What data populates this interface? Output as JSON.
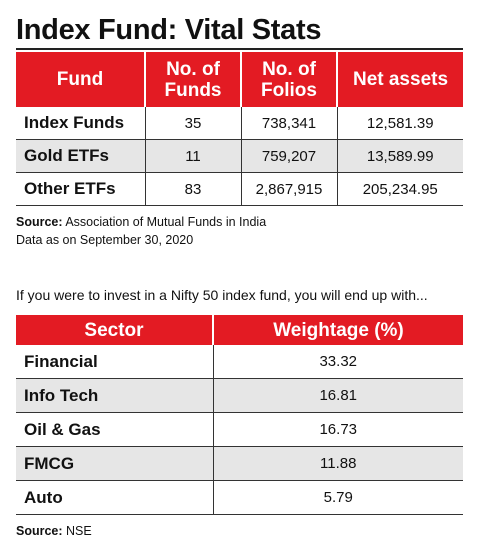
{
  "title": "Index Fund: Vital Stats",
  "fund_table": {
    "headers": [
      "Fund",
      "No. of Funds",
      "No. of Folios",
      "Net assets"
    ],
    "rows": [
      {
        "fund": "Index Funds",
        "funds": "35",
        "folios": "738,341",
        "net_assets": "12,581.39"
      },
      {
        "fund": "Gold ETFs",
        "funds": "11",
        "folios": "759,207",
        "net_assets": "13,589.99"
      },
      {
        "fund": "Other ETFs",
        "funds": "83",
        "folios": "2,867,915",
        "net_assets": "205,234.95"
      }
    ]
  },
  "fund_source": {
    "label": "Source:",
    "text": "Association of Mutual Funds in India",
    "date_note": "Data as on September 30, 2020"
  },
  "intro": "If you were to invest in a Nifty 50 index fund, you will end up with...",
  "sector_table": {
    "headers": [
      "Sector",
      "Weightage (%)"
    ],
    "rows": [
      {
        "sector": "Financial",
        "weight": "33.32"
      },
      {
        "sector": "Info Tech",
        "weight": "16.81"
      },
      {
        "sector": "Oil & Gas",
        "weight": "16.73"
      },
      {
        "sector": "FMCG",
        "weight": "11.88"
      },
      {
        "sector": "Auto",
        "weight": "5.79"
      }
    ]
  },
  "sector_source": {
    "label": "Source:",
    "text": "NSE"
  },
  "colors": {
    "header_red": "#e31b23",
    "alt_row_gray": "#e6e6e6"
  }
}
